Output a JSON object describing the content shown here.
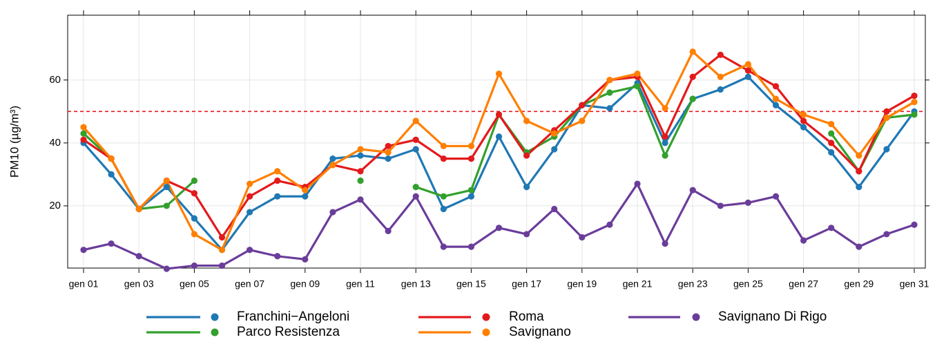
{
  "chart_data": {
    "type": "line",
    "categories": [
      "gen 01",
      null,
      "gen 03",
      null,
      "gen 05",
      null,
      "gen 07",
      null,
      "gen 09",
      null,
      "gen 11",
      null,
      "gen 13",
      null,
      "gen 15",
      null,
      "gen 17",
      null,
      "gen 19",
      null,
      "gen 21",
      null,
      "gen 23",
      null,
      "gen 25",
      null,
      "gen 27",
      null,
      "gen 29",
      null,
      "gen 31"
    ],
    "y_label": "PM10 (µg/m³)",
    "ylim": [
      0,
      80.6
    ],
    "yticks": [
      20,
      40,
      60
    ],
    "grid": true,
    "threshold": 50,
    "threshold_color": "#e31a1c",
    "legend": "bottom",
    "series": [
      {
        "name": "Franchini−Angeloni",
        "color": "#1f78b4",
        "values": [
          40,
          30,
          19,
          26,
          16,
          6,
          18,
          23,
          23,
          35,
          36,
          35,
          38,
          19,
          23,
          42,
          26,
          38,
          52,
          51,
          59,
          40,
          54,
          57,
          61,
          52,
          45,
          37,
          26,
          38,
          50
        ]
      },
      {
        "name": "Parco Resistenza",
        "color": "#33a02c",
        "values": [
          43,
          35,
          19,
          20,
          28,
          null,
          null,
          null,
          null,
          null,
          28,
          null,
          26,
          23,
          25,
          49,
          37,
          42,
          52,
          56,
          58,
          36,
          54,
          null,
          null,
          null,
          null,
          43,
          31,
          48,
          49
        ]
      },
      {
        "name": "Roma",
        "color": "#e31a1c",
        "values": [
          41,
          35,
          19,
          28,
          24,
          10,
          23,
          28,
          26,
          33,
          31,
          39,
          41,
          35,
          35,
          49,
          36,
          44,
          52,
          60,
          61,
          42,
          61,
          68,
          63,
          58,
          47,
          40,
          31,
          50,
          55
        ]
      },
      {
        "name": "Savignano",
        "color": "#ff7f00",
        "values": [
          45,
          35,
          19,
          28,
          11,
          6,
          27,
          31,
          25,
          33,
          38,
          37,
          47,
          39,
          39,
          62,
          47,
          43,
          47,
          60,
          62,
          51,
          69,
          61,
          65,
          54,
          49,
          46,
          36,
          48,
          53
        ]
      },
      {
        "name": "Savignano Di Rigo",
        "color": "#6a3d9a",
        "values": [
          6,
          8,
          4,
          0,
          1,
          1,
          6,
          4,
          3,
          18,
          22,
          12,
          23,
          7,
          7,
          13,
          11,
          19,
          10,
          14,
          27,
          8,
          25,
          20,
          21,
          23,
          9,
          13,
          7,
          11,
          14
        ]
      }
    ]
  }
}
